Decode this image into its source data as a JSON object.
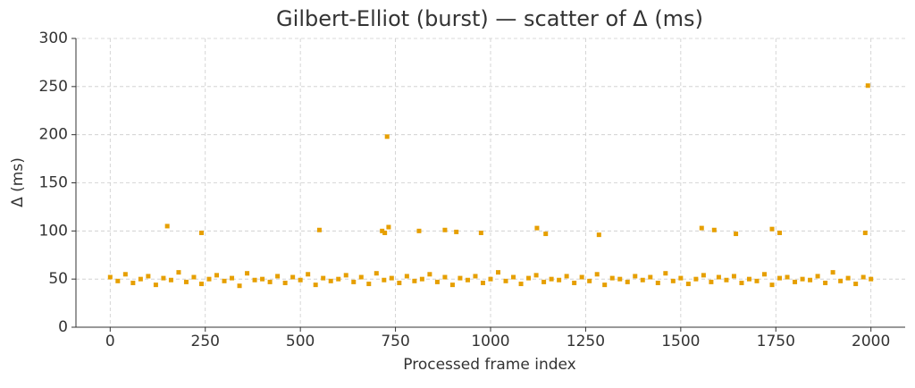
{
  "chart_data": {
    "type": "scatter",
    "title": "Gilbert-Elliot (burst) — scatter of Δ (ms)",
    "x_label": "Processed frame index",
    "y_label": "Δ (ms)",
    "xlim": [
      -90,
      2090
    ],
    "ylim": [
      0,
      300
    ],
    "xticks": [
      0,
      250,
      500,
      750,
      1000,
      1250,
      1500,
      1750,
      2000
    ],
    "yticks": [
      0,
      50,
      100,
      150,
      200,
      250,
      300
    ],
    "grid": true,
    "series": [
      {
        "color": "#e69f00",
        "x": [
          0,
          20,
          40,
          60,
          80,
          100,
          120,
          140,
          160,
          180,
          200,
          220,
          240,
          260,
          280,
          300,
          320,
          340,
          360,
          380,
          400,
          420,
          440,
          460,
          480,
          500,
          520,
          540,
          560,
          580,
          600,
          620,
          640,
          660,
          680,
          700,
          720,
          740,
          760,
          780,
          800,
          820,
          840,
          860,
          880,
          900,
          920,
          940,
          960,
          980,
          1000,
          1020,
          1040,
          1060,
          1080,
          1100,
          1120,
          1140,
          1160,
          1180,
          1200,
          1220,
          1240,
          1260,
          1280,
          1300,
          1320,
          1340,
          1360,
          1380,
          1400,
          1420,
          1440,
          1460,
          1480,
          1500,
          1520,
          1540,
          1560,
          1580,
          1600,
          1620,
          1640,
          1660,
          1680,
          1700,
          1720,
          1740,
          1760,
          1780,
          1800,
          1820,
          1840,
          1860,
          1880,
          1900,
          1920,
          1940,
          1960,
          1980,
          2000,
          150,
          240,
          550,
          715,
          722,
          728,
          732,
          812,
          880,
          910,
          975,
          1122,
          1145,
          1285,
          1555,
          1588,
          1645,
          1740,
          1760,
          1985,
          1992
        ],
        "values": [
          52,
          48,
          55,
          46,
          50,
          53,
          44,
          51,
          49,
          57,
          47,
          52,
          45,
          50,
          54,
          48,
          51,
          43,
          56,
          49,
          50,
          47,
          53,
          46,
          52,
          49,
          55,
          44,
          51,
          48,
          50,
          54,
          47,
          52,
          45,
          56,
          49,
          51,
          46,
          53,
          48,
          50,
          55,
          47,
          52,
          44,
          51,
          49,
          53,
          46,
          50,
          57,
          48,
          52,
          45,
          51,
          54,
          47,
          50,
          49,
          53,
          46,
          52,
          48,
          55,
          44,
          51,
          50,
          47,
          53,
          49,
          52,
          46,
          56,
          48,
          51,
          45,
          50,
          54,
          47,
          52,
          49,
          53,
          46,
          50,
          48,
          55,
          44,
          51,
          52,
          47,
          50,
          49,
          53,
          46,
          57,
          48,
          51,
          45,
          52,
          50,
          105,
          98,
          101,
          100,
          98,
          198,
          104,
          100,
          101,
          99,
          98,
          103,
          97,
          96,
          103,
          101,
          97,
          102,
          98,
          98,
          251
        ]
      }
    ]
  }
}
